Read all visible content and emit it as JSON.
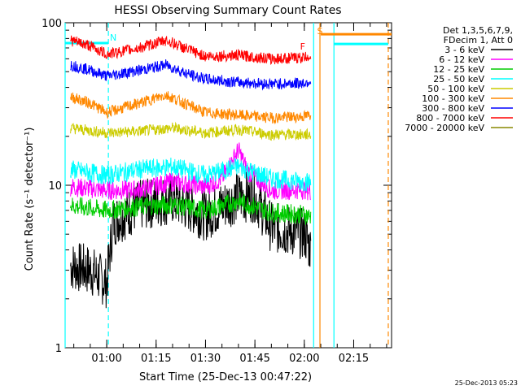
{
  "chart_data": {
    "type": "line",
    "title": "HESSI Observing Summary Count Rates",
    "xlabel": "Start Time (25-Dec-13 00:47:22)",
    "ylabel": "Count Rate (s⁻¹ detector⁻¹)",
    "y_scale": "log",
    "ylim": [
      1,
      100
    ],
    "xlim": [
      "00:47:22",
      "02:26:30"
    ],
    "x_ticks": [
      "01:00",
      "01:15",
      "01:30",
      "01:45",
      "02:00",
      "02:15"
    ],
    "y_ticks": [
      "1",
      "10",
      "100"
    ],
    "grid": false,
    "legend_position": "right",
    "legend_header": [
      "Det 1,3,5,6,7,9,",
      "FDecim 1, Att 0"
    ],
    "annotations": [
      {
        "text": "N",
        "x": "01:00:30"
      },
      {
        "text": "S",
        "x": "02:04:45"
      },
      {
        "text": "F",
        "x": "01:59:30"
      }
    ],
    "footer_timestamp": "25-Dec-2013 05:23",
    "series": [
      {
        "name": "3 - 6 keV",
        "color": "#000000",
        "points": [
          [
            "00:49",
            "3.2"
          ],
          [
            "00:55",
            "3.0"
          ],
          [
            "01:00",
            "2.5"
          ],
          [
            "01:02",
            "6.0"
          ],
          [
            "01:10",
            "7.5"
          ],
          [
            "01:20",
            "8.2"
          ],
          [
            "01:30",
            "6.5"
          ],
          [
            "01:40",
            "8.5"
          ],
          [
            "01:45",
            "8.5"
          ],
          [
            "01:50",
            "5.5"
          ],
          [
            "02:00",
            "5.0"
          ],
          [
            "02:02",
            "4.0"
          ]
        ]
      },
      {
        "name": "6 - 12 keV",
        "color": "#ff00ff",
        "points": [
          [
            "00:49",
            "9.8"
          ],
          [
            "01:00",
            "9.3"
          ],
          [
            "01:10",
            "9.4"
          ],
          [
            "01:20",
            "10.5"
          ],
          [
            "01:30",
            "9.8"
          ],
          [
            "01:35",
            "11.0"
          ],
          [
            "01:40",
            "16.5"
          ],
          [
            "01:43",
            "12.0"
          ],
          [
            "01:50",
            "9.3"
          ],
          [
            "02:00",
            "9.4"
          ],
          [
            "02:02",
            "9.2"
          ]
        ]
      },
      {
        "name": "12 - 25 keV",
        "color": "#00cc00",
        "points": [
          [
            "00:49",
            "7.5"
          ],
          [
            "01:00",
            "7.0"
          ],
          [
            "01:10",
            "7.4"
          ],
          [
            "01:20",
            "7.6"
          ],
          [
            "01:30",
            "7.0"
          ],
          [
            "01:40",
            "8.0"
          ],
          [
            "01:50",
            "6.8"
          ],
          [
            "02:00",
            "6.6"
          ],
          [
            "02:02",
            "6.4"
          ]
        ]
      },
      {
        "name": "25 - 50 keV",
        "color": "#00ffff",
        "points": [
          [
            "00:49",
            "12.5"
          ],
          [
            "01:00",
            "11.5"
          ],
          [
            "01:10",
            "12.5"
          ],
          [
            "01:20",
            "13.0"
          ],
          [
            "01:30",
            "11.5"
          ],
          [
            "01:40",
            "13.0"
          ],
          [
            "01:50",
            "11.0"
          ],
          [
            "02:00",
            "10.5"
          ],
          [
            "02:02",
            "10.5"
          ]
        ]
      },
      {
        "name": "50 - 100 keV",
        "color": "#cccc00",
        "points": [
          [
            "00:49",
            "22.5"
          ],
          [
            "01:00",
            "21.0"
          ],
          [
            "01:10",
            "21.5"
          ],
          [
            "01:20",
            "22.5"
          ],
          [
            "01:30",
            "21.0"
          ],
          [
            "01:40",
            "22.0"
          ],
          [
            "01:50",
            "20.5"
          ],
          [
            "02:00",
            "20.5"
          ],
          [
            "02:02",
            "20.5"
          ]
        ]
      },
      {
        "name": "100 - 300 keV",
        "color": "#ff8800",
        "points": [
          [
            "00:49",
            "35"
          ],
          [
            "00:55",
            "32"
          ],
          [
            "01:00",
            "28"
          ],
          [
            "01:10",
            "32"
          ],
          [
            "01:18",
            "36"
          ],
          [
            "01:25",
            "31"
          ],
          [
            "01:30",
            "28"
          ],
          [
            "01:40",
            "27"
          ],
          [
            "01:50",
            "26"
          ],
          [
            "02:00",
            "26.5"
          ],
          [
            "02:02",
            "27"
          ]
        ]
      },
      {
        "name": "300 - 800 keV",
        "color": "#0000ff",
        "points": [
          [
            "00:49",
            "55"
          ],
          [
            "00:55",
            "51"
          ],
          [
            "01:00",
            "47"
          ],
          [
            "01:10",
            "51"
          ],
          [
            "01:18",
            "55"
          ],
          [
            "01:25",
            "48"
          ],
          [
            "01:30",
            "45"
          ],
          [
            "01:40",
            "43"
          ],
          [
            "01:50",
            "42"
          ],
          [
            "02:00",
            "42.5"
          ],
          [
            "02:02",
            "44"
          ]
        ]
      },
      {
        "name": "800 - 7000 keV",
        "color": "#ff0000",
        "points": [
          [
            "00:49",
            "78"
          ],
          [
            "00:55",
            "72"
          ],
          [
            "01:00",
            "64"
          ],
          [
            "01:10",
            "70"
          ],
          [
            "01:18",
            "78"
          ],
          [
            "01:25",
            "68"
          ],
          [
            "01:30",
            "62"
          ],
          [
            "01:40",
            "63"
          ],
          [
            "01:50",
            "60"
          ],
          [
            "02:00",
            "61"
          ],
          [
            "02:02",
            "63"
          ]
        ]
      },
      {
        "name": "7000 - 20000 keV",
        "color": "#888800",
        "points": []
      }
    ],
    "attenuator_spans": [
      {
        "color": "#00ffff",
        "y": "75",
        "from": "00:47:22",
        "to": "01:00:30"
      },
      {
        "color": "#ff8800",
        "y": "85",
        "from": "02:05:00",
        "to": "02:26:30"
      },
      {
        "color": "#00ffff",
        "y": "74",
        "from": "02:09:00",
        "to": "02:25:30"
      }
    ],
    "vertical_lines": [
      {
        "x": "00:47:22",
        "color": "#00ffff",
        "style": "solid"
      },
      {
        "x": "01:00:30",
        "color": "#00ffff",
        "style": "dashed"
      },
      {
        "x": "02:02:50",
        "color": "#00ffff",
        "style": "solid"
      },
      {
        "x": "02:04:45",
        "color": "#ff8800",
        "style": "solid"
      },
      {
        "x": "02:09:00",
        "color": "#00ffff",
        "style": "solid"
      },
      {
        "x": "02:25:30",
        "color": "#ff8800",
        "style": "dashed"
      }
    ]
  }
}
